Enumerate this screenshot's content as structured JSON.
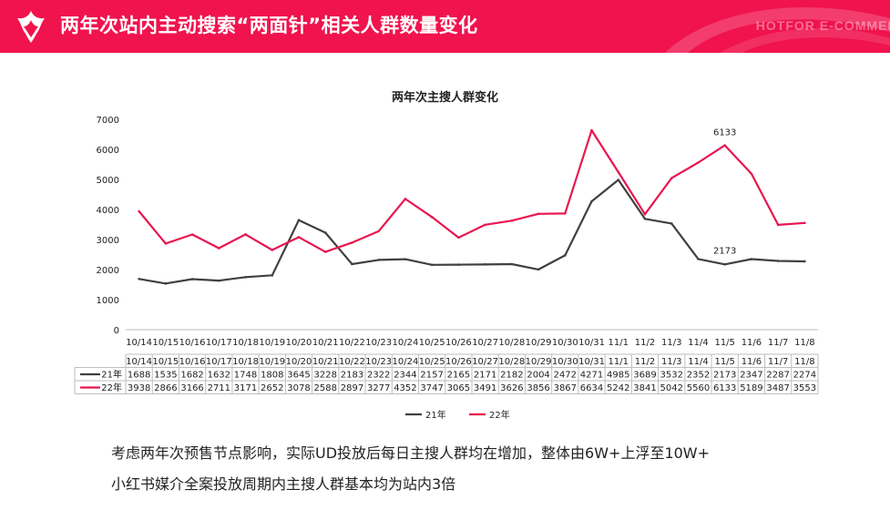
{
  "header": {
    "title": "两年次站内主动搜索“两面针”相关人群数量变化",
    "brand": "HOTFOR E-COMMERCE",
    "bg_color": "#f0134d"
  },
  "chart_data": {
    "type": "line",
    "title": "两年次主搜人群变化",
    "categories": [
      "10/14",
      "10/15",
      "10/16",
      "10/17",
      "10/18",
      "10/19",
      "10/20",
      "10/21",
      "10/22",
      "10/23",
      "10/24",
      "10/25",
      "10/26",
      "10/27",
      "10/28",
      "10/29",
      "10/30",
      "10/31",
      "11/1",
      "11/2",
      "11/3",
      "11/4",
      "11/5",
      "11/6",
      "11/7",
      "11/8"
    ],
    "series": [
      {
        "name": "21年",
        "color": "#404040",
        "values": [
          1688,
          1535,
          1682,
          1632,
          1748,
          1808,
          3645,
          3228,
          2183,
          2322,
          2344,
          2157,
          2165,
          2171,
          2182,
          2004,
          2472,
          4271,
          4985,
          3689,
          3532,
          2352,
          2173,
          2347,
          2287,
          2274
        ]
      },
      {
        "name": "22年",
        "color": "#e8164f",
        "values": [
          3938,
          2866,
          3166,
          2711,
          3171,
          2652,
          3078,
          2588,
          2897,
          3277,
          4352,
          3747,
          3065,
          3491,
          3626,
          3856,
          3867,
          6634,
          5242,
          3841,
          5042,
          5560,
          6133,
          5189,
          3487,
          3553
        ]
      }
    ],
    "ylim": [
      0,
      7000
    ],
    "yticks": [
      0,
      1000,
      2000,
      3000,
      4000,
      5000,
      6000,
      7000
    ],
    "annotations": [
      {
        "text": "6133",
        "series": 1,
        "index": 22
      },
      {
        "text": "2173",
        "series": 0,
        "index": 22
      }
    ],
    "legend_position": "bottom",
    "data_table": true,
    "grid": false
  },
  "notes": [
    "考虑两年次预售节点影响，实际UD投放后每日主搜人群均在增加，整体由6W+上浮至10W+",
    "小红书媒介全案投放周期内主搜人群基本均为站内3倍"
  ]
}
